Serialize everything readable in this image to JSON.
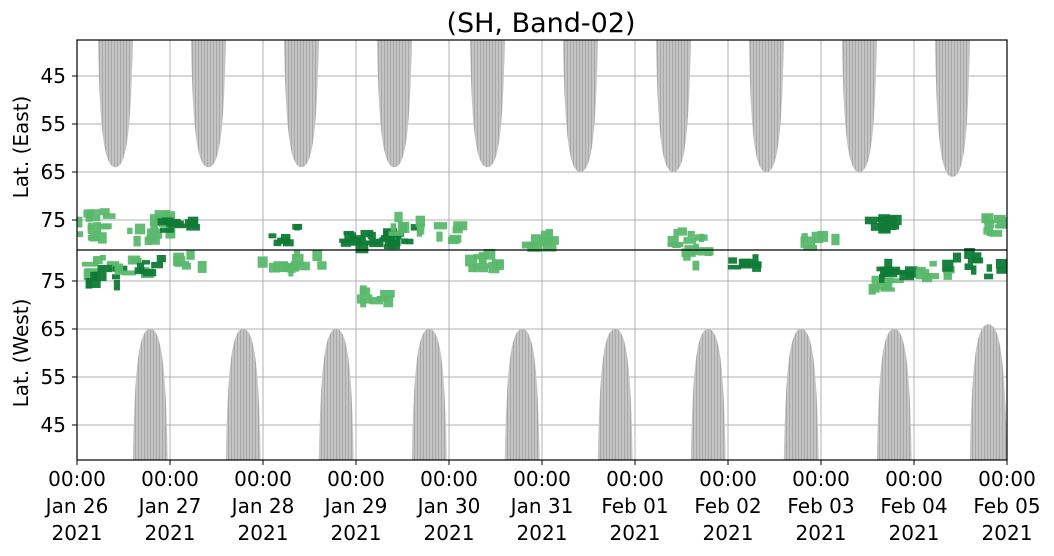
{
  "chart_data": {
    "type": "heatmap",
    "title": "(SH, Band-02)",
    "ylabel_top": "Lat. (East)",
    "ylabel_bottom": "Lat. (West)",
    "y_ticks_top": [
      "45",
      "55",
      "65",
      "75"
    ],
    "y_ticks_bottom": [
      "75",
      "65",
      "55",
      "45"
    ],
    "x_ticks": [
      {
        "time": "00:00",
        "date": "Jan 26",
        "year": "2021"
      },
      {
        "time": "00:00",
        "date": "Jan 27",
        "year": "2021"
      },
      {
        "time": "00:00",
        "date": "Jan 28",
        "year": "2021"
      },
      {
        "time": "00:00",
        "date": "Jan 29",
        "year": "2021"
      },
      {
        "time": "00:00",
        "date": "Jan 30",
        "year": "2021"
      },
      {
        "time": "00:00",
        "date": "Jan 31",
        "year": "2021"
      },
      {
        "time": "00:00",
        "date": "Feb 01",
        "year": "2021"
      },
      {
        "time": "00:00",
        "date": "Feb 02",
        "year": "2021"
      },
      {
        "time": "00:00",
        "date": "Feb 03",
        "year": "2021"
      },
      {
        "time": "00:00",
        "date": "Feb 04",
        "year": "2021"
      },
      {
        "time": "00:00",
        "date": "Feb 05",
        "year": "2021"
      }
    ],
    "grid": true,
    "colors": {
      "daylight": "#c0c0c0",
      "activity_light": "#5ab86c",
      "activity_dark": "#0f7a36",
      "grid": "#b0b0b0"
    },
    "daylight_east": [
      {
        "start": "2021-01-26 05:24",
        "end": "2021-01-26 14:24",
        "min_lat": 64
      },
      {
        "start": "2021-01-27 05:24",
        "end": "2021-01-27 14:24",
        "min_lat": 64
      },
      {
        "start": "2021-01-28 05:24",
        "end": "2021-01-28 14:24",
        "min_lat": 64
      },
      {
        "start": "2021-01-29 05:24",
        "end": "2021-01-29 14:24",
        "min_lat": 64
      },
      {
        "start": "2021-01-30 05:24",
        "end": "2021-01-30 14:24",
        "min_lat": 64
      },
      {
        "start": "2021-01-31 05:24",
        "end": "2021-01-31 14:24",
        "min_lat": 65
      },
      {
        "start": "2021-02-01 05:24",
        "end": "2021-02-01 14:24",
        "min_lat": 65
      },
      {
        "start": "2021-02-02 05:24",
        "end": "2021-02-02 14:24",
        "min_lat": 65
      },
      {
        "start": "2021-02-03 05:24",
        "end": "2021-02-03 14:24",
        "min_lat": 65
      },
      {
        "start": "2021-02-04 05:24",
        "end": "2021-02-04 14:24",
        "min_lat": 66
      }
    ],
    "daylight_west": [
      {
        "start": "2021-01-26 14:24",
        "end": "2021-01-26 23:24",
        "min_lat": 65
      },
      {
        "start": "2021-01-27 14:24",
        "end": "2021-01-27 23:24",
        "min_lat": 65
      },
      {
        "start": "2021-01-28 14:24",
        "end": "2021-01-28 23:24",
        "min_lat": 65
      },
      {
        "start": "2021-01-29 14:24",
        "end": "2021-01-29 23:24",
        "min_lat": 65
      },
      {
        "start": "2021-01-30 14:24",
        "end": "2021-01-30 23:24",
        "min_lat": 65
      },
      {
        "start": "2021-01-31 14:24",
        "end": "2021-01-31 23:24",
        "min_lat": 65
      },
      {
        "start": "2021-02-01 14:24",
        "end": "2021-02-01 23:24",
        "min_lat": 65
      },
      {
        "start": "2021-02-02 14:24",
        "end": "2021-02-02 23:24",
        "min_lat": 65
      },
      {
        "start": "2021-02-03 14:24",
        "end": "2021-02-03 23:24",
        "min_lat": 65
      },
      {
        "start": "2021-02-04 14:24",
        "end": "2021-02-05 00:00",
        "min_lat": 66
      }
    ],
    "activity": [
      {
        "time": "2021-01-26 03:00",
        "hemi": "East",
        "lat": 77,
        "level": "light"
      },
      {
        "time": "2021-01-26 04:00",
        "hemi": "East",
        "lat": 75,
        "level": "light"
      },
      {
        "time": "2021-01-26 06:00",
        "hemi": "West",
        "lat": 78,
        "level": "light"
      },
      {
        "time": "2021-01-26 07:00",
        "hemi": "West",
        "lat": 76,
        "level": "dark"
      },
      {
        "time": "2021-01-26 15:00",
        "hemi": "West",
        "lat": 78,
        "level": "light"
      },
      {
        "time": "2021-01-26 17:00",
        "hemi": "East",
        "lat": 78,
        "level": "light"
      },
      {
        "time": "2021-01-26 19:00",
        "hemi": "West",
        "lat": 78,
        "level": "dark"
      },
      {
        "time": "2021-01-26 22:00",
        "hemi": "East",
        "lat": 76,
        "level": "light"
      },
      {
        "time": "2021-01-27 03:00",
        "hemi": "East",
        "lat": 76,
        "level": "dark"
      },
      {
        "time": "2021-01-27 05:00",
        "hemi": "West",
        "lat": 79,
        "level": "light"
      },
      {
        "time": "2021-01-28 03:00",
        "hemi": "West",
        "lat": 79,
        "level": "light"
      },
      {
        "time": "2021-01-28 06:00",
        "hemi": "East",
        "lat": 78,
        "level": "dark"
      },
      {
        "time": "2021-01-28 12:00",
        "hemi": "West",
        "lat": 79,
        "level": "light"
      },
      {
        "time": "2021-01-29 01:00",
        "hemi": "East",
        "lat": 79,
        "level": "dark"
      },
      {
        "time": "2021-01-29 06:00",
        "hemi": "East",
        "lat": 79,
        "level": "dark"
      },
      {
        "time": "2021-01-29 05:00",
        "hemi": "West",
        "lat": 72,
        "level": "light"
      },
      {
        "time": "2021-01-29 11:00",
        "hemi": "East",
        "lat": 78,
        "level": "dark"
      },
      {
        "time": "2021-01-29 14:00",
        "hemi": "East",
        "lat": 76,
        "level": "light"
      },
      {
        "time": "2021-01-30 01:00",
        "hemi": "East",
        "lat": 78,
        "level": "light"
      },
      {
        "time": "2021-01-30 09:00",
        "hemi": "West",
        "lat": 79,
        "level": "light"
      },
      {
        "time": "2021-01-31 00:00",
        "hemi": "East",
        "lat": 79,
        "level": "light"
      },
      {
        "time": "2021-02-01 14:00",
        "hemi": "East",
        "lat": 79,
        "level": "light"
      },
      {
        "time": "2021-02-01 15:00",
        "hemi": "West",
        "lat": 80,
        "level": "light"
      },
      {
        "time": "2021-02-02 05:00",
        "hemi": "West",
        "lat": 78,
        "level": "dark"
      },
      {
        "time": "2021-02-03 00:00",
        "hemi": "East",
        "lat": 79,
        "level": "light"
      },
      {
        "time": "2021-02-03 17:00",
        "hemi": "East",
        "lat": 75,
        "level": "dark"
      },
      {
        "time": "2021-02-03 17:00",
        "hemi": "West",
        "lat": 74,
        "level": "light"
      },
      {
        "time": "2021-02-03 20:00",
        "hemi": "West",
        "lat": 77,
        "level": "dark"
      },
      {
        "time": "2021-02-04 05:00",
        "hemi": "West",
        "lat": 77,
        "level": "light"
      },
      {
        "time": "2021-02-04 12:00",
        "hemi": "West",
        "lat": 79,
        "level": "dark"
      },
      {
        "time": "2021-02-04 23:00",
        "hemi": "West",
        "lat": 77,
        "level": "dark"
      },
      {
        "time": "2021-02-04 23:00",
        "hemi": "East",
        "lat": 76,
        "level": "light"
      }
    ]
  }
}
